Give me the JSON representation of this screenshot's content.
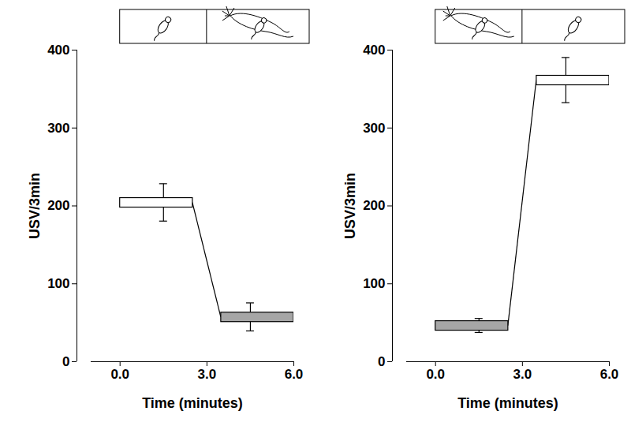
{
  "chart_data": [
    {
      "type": "bar",
      "x_label": "Time (minutes)",
      "y_label": "USV/3min",
      "bins": [
        0,
        3,
        6
      ],
      "values": [
        204,
        57
      ],
      "errors": [
        24,
        18
      ],
      "colors": [
        "#ffffff",
        "#a6a6a6"
      ],
      "xlim": [
        -1,
        6
      ],
      "xticks": [
        0,
        3,
        6
      ],
      "ylim": [
        0,
        400
      ],
      "yticks": [
        0,
        100,
        200,
        300,
        400
      ]
    },
    {
      "type": "bar",
      "x_label": "Time (minutes)",
      "y_label": "USV/3min",
      "bins": [
        0,
        3,
        6
      ],
      "values": [
        46,
        361
      ],
      "errors": [
        9,
        29
      ],
      "colors": [
        "#a6a6a6",
        "#ffffff"
      ],
      "xlim": [
        -1,
        6
      ],
      "xticks": [
        0,
        3,
        6
      ],
      "ylim": [
        0,
        400
      ],
      "yticks": [
        0,
        100,
        200,
        300,
        400
      ]
    }
  ]
}
